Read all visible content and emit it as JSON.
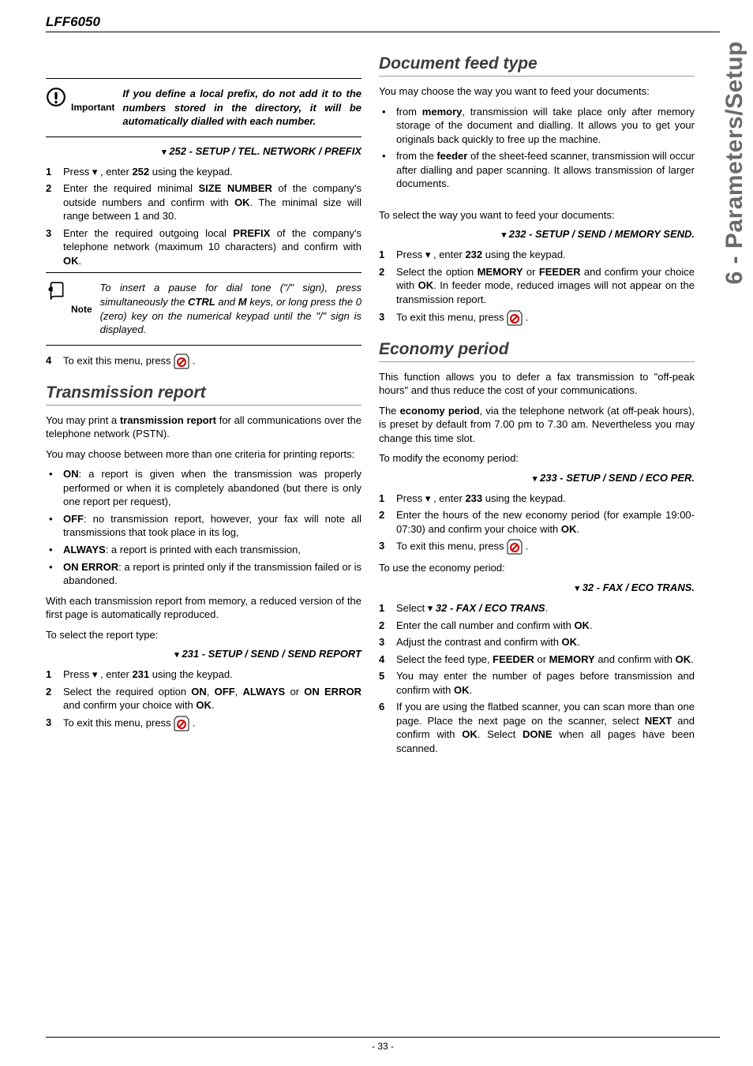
{
  "model": "LFF6050",
  "sideTab": "6 - Parameters/Setup",
  "pageNumber": "- 33 -",
  "icons": {
    "important": "important-icon",
    "note": "note-icon",
    "stop": "stop-icon"
  },
  "left": {
    "importantBox": {
      "label": "Important",
      "text": "If you define a local prefix, do not add it to the numbers stored in the directory, it will be automatically dialled with each number."
    },
    "menu252": "252 - SETUP / TEL. NETWORK / PREFIX",
    "steps252": [
      "Press ▾ , enter <b>252</b> using the keypad.",
      "Enter the required minimal <b>SIZE NUMBER</b> of the company's outside numbers and confirm with <b>OK</b>. The minimal size will range between 1 and 30.",
      "Enter the required outgoing local <b>PREFIX</b> of the company's telephone network (maximum 10 characters) and confirm with <b>OK</b>."
    ],
    "noteBox": {
      "label": "Note",
      "text": "To insert a pause for dial tone (\"/\" sign), press simultaneously the <b class=\"sc\">CTRL</b> and <b class=\"sc\">M</b> keys, or long press the 0 (zero) key on the numerical keypad until the \"/\" sign is displayed."
    },
    "step4": "To exit this menu, press ",
    "transmissionTitle": "Transmission report",
    "transP1": "You may print a <b>transmission report</b> for all communications over the telephone network (PSTN).",
    "transP2": "You may choose between more than one criteria for printing reports:",
    "transBullets": [
      "<b>ON</b>: a report is given when the transmission was properly performed or when it is completely abandoned (but there is only one report per request),",
      "<b>OFF</b>: no transmission report, however, your fax will note all transmissions that took place in its log,",
      "<b>ALWAYS</b>: a report is printed with each transmission,",
      "<b>ON ERROR</b>: a report is printed only if the transmission failed or is abandoned."
    ],
    "transP3": "With each transmission report from memory, a reduced version of the first page is automatically reproduced.",
    "transP4": "To select the report type:",
    "menu231": "231 - SETUP / SEND / SEND REPORT",
    "steps231": [
      "Press ▾ , enter <b>231</b> using the keypad.",
      "Select the required option <b>ON</b>, <b>OFF</b>, <b>ALWAYS</b> or <b>ON ERROR</b> and confirm your choice with <b>OK</b>.",
      "To exit this menu, press "
    ]
  },
  "right": {
    "feedTitle": "Document feed type",
    "feedP1": "You may choose the way you want to feed your documents:",
    "feedBullets": [
      "from <b>memory</b>, transmission will take place only after memory storage of the document and dialling. It allows you to get your originals back quickly to free up the machine.",
      "from the <b>feeder</b> of the sheet-feed scanner, transmission will occur after dialling and paper scanning. It allows transmission of larger documents."
    ],
    "feedP2": "To select the way you want to feed your documents:",
    "menu232": "232 - SETUP / SEND / MEMORY SEND.",
    "steps232": [
      "Press ▾ , enter <b>232</b> using the keypad.",
      "Select the option <b>MEMORY</b> or <b>FEEDER</b> and confirm your choice with <b>OK</b>. In feeder mode, reduced images will not appear on the transmission report.",
      "To exit this menu, press "
    ],
    "econTitle": "Economy period",
    "econP1": "This function allows you to defer a fax transmission to \"off-peak hours\" and thus reduce the cost of your communications.",
    "econP2": "The <b>economy period</b>, via the telephone network (at off-peak hours), is preset by default from 7.00 pm to 7.30 am. Nevertheless you may change this time slot.",
    "econP3": "To modify the economy period:",
    "menu233": "233 - SETUP / SEND / ECO PER.",
    "steps233": [
      "Press ▾ , enter <b>233</b> using the keypad.",
      "Enter the hours of the new economy period (for example 19:00-07:30) and confirm your choice with <b>OK</b>.",
      "To exit this menu, press "
    ],
    "econP4": "To use the economy period:",
    "menu32": "32 - FAX / ECO TRANS.",
    "steps32": [
      "Select ▾ <b><i>32 - FAX / ECO TRANS</i></b>.",
      "Enter the call number and confirm with <b>OK</b>.",
      "Adjust the contrast and confirm with <b>OK</b>.",
      "Select the feed type, <b>FEEDER</b> or <b>MEMORY</b> and confirm with <b>OK</b>.",
      "You may enter the number of pages before transmission and confirm with <b>OK</b>.",
      "If you are using the flatbed scanner, you can scan more than one page. Place the next page on the scanner, select <b>NEXT</b> and confirm with <b>OK</b>. Select <b>DONE</b> when all pages have been scanned."
    ]
  }
}
